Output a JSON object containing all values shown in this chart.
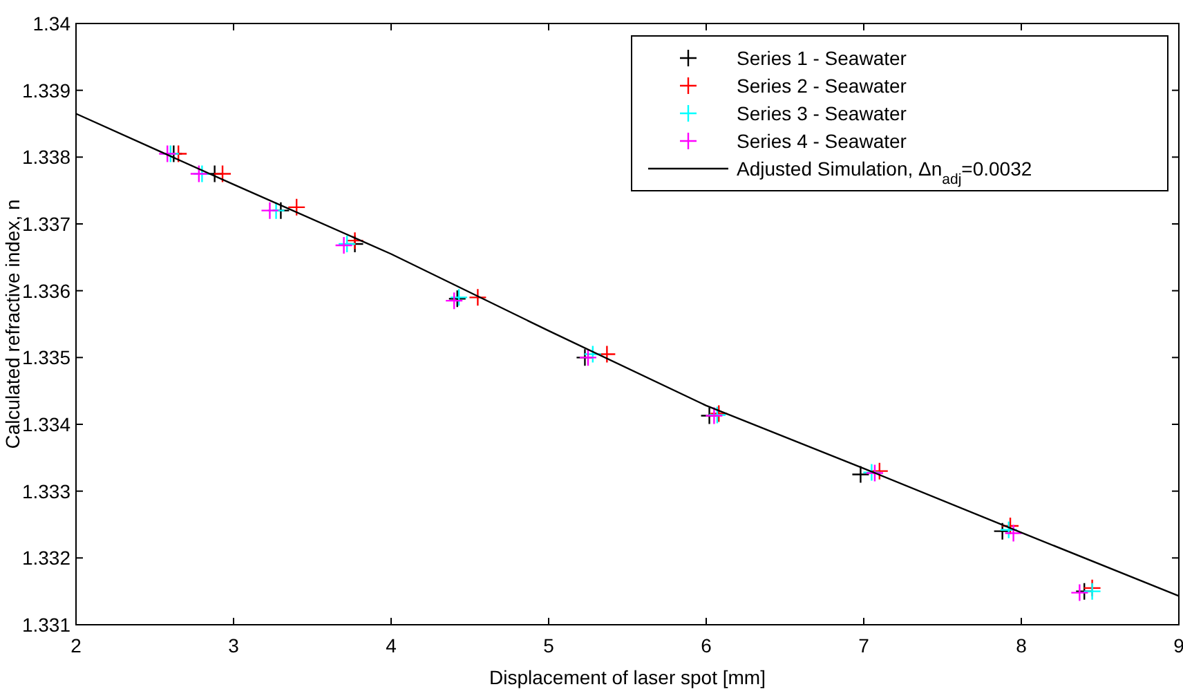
{
  "chart_data": {
    "type": "scatter",
    "xlabel": "Displacement of laser spot [mm]",
    "ylabel": "Calculated refractive index, n",
    "xlim": [
      2,
      9
    ],
    "ylim": [
      1.331,
      1.34
    ],
    "xticks": [
      2,
      3,
      4,
      5,
      6,
      7,
      8,
      9
    ],
    "yticks": [
      1.331,
      1.332,
      1.333,
      1.334,
      1.335,
      1.336,
      1.337,
      1.338,
      1.339,
      1.34
    ],
    "grid": false,
    "legend": "top right",
    "marker": "cross",
    "series": [
      {
        "name": "Series 1 - Seawater",
        "color": "#000000",
        "x": [
          2.62,
          2.88,
          3.3,
          3.77,
          4.42,
          5.23,
          6.02,
          6.98,
          7.88,
          8.4
        ],
        "values": [
          1.33805,
          1.33775,
          1.3372,
          1.3367,
          1.33588,
          1.335,
          1.33413,
          1.33325,
          1.3324,
          1.3315
        ]
      },
      {
        "name": "Series 2 - Seawater",
        "color": "#ff0000",
        "x": [
          2.65,
          2.93,
          3.4,
          3.77,
          4.55,
          5.37,
          6.08,
          7.1,
          7.93,
          8.45
        ],
        "values": [
          1.33805,
          1.33775,
          1.33725,
          1.33675,
          1.3359,
          1.33505,
          1.33416,
          1.3333,
          1.33248,
          1.33155
        ]
      },
      {
        "name": "Series 3 - Seawater",
        "color": "#00ffff",
        "x": [
          2.6,
          2.8,
          3.27,
          3.72,
          4.43,
          5.28,
          6.07,
          7.05,
          7.92,
          8.45
        ],
        "values": [
          1.33805,
          1.33775,
          1.3372,
          1.3367,
          1.3359,
          1.33505,
          1.33414,
          1.33328,
          1.33242,
          1.3315
        ]
      },
      {
        "name": "Series 4 - Seawater",
        "color": "#ff00ff",
        "x": [
          2.58,
          2.78,
          3.23,
          3.7,
          4.4,
          5.25,
          6.05,
          7.07,
          7.95,
          8.37
        ],
        "values": [
          1.33805,
          1.33775,
          1.3372,
          1.33668,
          1.33585,
          1.335,
          1.33413,
          1.33327,
          1.33237,
          1.33148
        ]
      },
      {
        "name": "Adjusted Simulation, Δn$_{adj}$=0.0032",
        "type": "line",
        "color": "#000000",
        "marker": "none",
        "line_style": "solid",
        "x": [
          2,
          3,
          4,
          5,
          6,
          7,
          8,
          9
        ],
        "values": [
          1.33865,
          1.33759,
          1.33655,
          1.3354,
          1.33428,
          1.33334,
          1.33238,
          1.33143
        ]
      }
    ]
  }
}
